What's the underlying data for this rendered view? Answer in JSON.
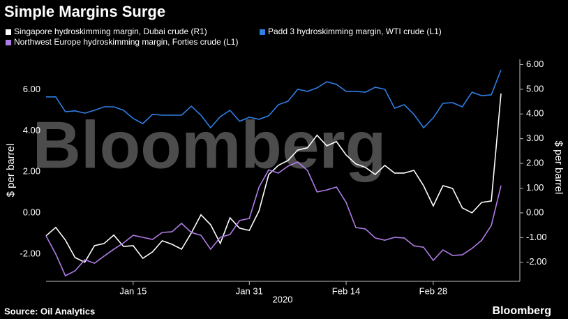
{
  "chart_data": {
    "type": "line",
    "title": "Simple Margins Surge",
    "watermark": "Bloomberg",
    "xlabel": "2020",
    "ylabel": "$ per barrel",
    "y2label": "$ per barrel",
    "source": "Source: Oil Analytics",
    "brand": "Bloomberg",
    "categories": [
      null,
      null,
      null,
      null,
      null,
      null,
      null,
      null,
      null,
      "Jan 15",
      null,
      null,
      null,
      null,
      null,
      null,
      null,
      null,
      null,
      null,
      null,
      "Jan 31",
      null,
      null,
      null,
      null,
      null,
      null,
      null,
      null,
      null,
      "Feb 14",
      null,
      null,
      null,
      null,
      null,
      null,
      null,
      null,
      "Feb 28",
      null,
      null,
      null,
      null,
      null,
      null,
      null
    ],
    "series": [
      {
        "name": "Singapore hydroskimming margin, Dubai crude (R1)",
        "color": "#ffffff",
        "axis": "y2",
        "values": [
          -0.93,
          -0.59,
          -1.1,
          -1.81,
          -2.0,
          -1.33,
          -1.24,
          -0.9,
          -1.36,
          -1.33,
          -1.84,
          -1.58,
          -1.13,
          -1.27,
          -1.47,
          -0.82,
          -0.08,
          -0.48,
          -1.24,
          -0.2,
          -0.62,
          -0.71,
          0.08,
          1.55,
          1.92,
          2.12,
          2.54,
          2.63,
          3.14,
          2.71,
          2.88,
          2.34,
          1.98,
          1.84,
          1.55,
          1.92,
          1.61,
          1.61,
          1.72,
          1.1,
          0.28,
          1.1,
          0.99,
          0.2,
          0.0,
          0.42,
          0.48,
          4.83
        ]
      },
      {
        "name": "Padd 3 hydroskimming margin, WTI crude (L1)",
        "color": "#2f7fe6",
        "values": [
          5.65,
          5.65,
          4.93,
          4.97,
          4.86,
          5.0,
          5.17,
          5.17,
          5.0,
          4.6,
          4.35,
          4.8,
          4.76,
          4.76,
          4.76,
          5.2,
          4.76,
          4.15,
          4.69,
          5.0,
          4.46,
          4.66,
          4.56,
          4.73,
          5.27,
          5.44,
          6.02,
          5.92,
          6.09,
          6.39,
          6.26,
          5.92,
          5.92,
          5.88,
          6.12,
          6.02,
          5.1,
          5.27,
          4.8,
          4.15,
          4.63,
          5.34,
          5.37,
          5.17,
          5.88,
          5.71,
          5.75,
          6.97
        ]
      },
      {
        "name": "Northwest Europe hydroskimming margin, Forties crude (L1)",
        "color": "#b07ce8",
        "values": [
          -1.12,
          -2.0,
          -3.06,
          -2.82,
          -2.28,
          -2.45,
          -2.1,
          -1.77,
          -1.46,
          -1.09,
          -1.19,
          -1.29,
          -0.95,
          -0.92,
          -0.51,
          -0.95,
          -1.09,
          -1.77,
          -1.19,
          -1.05,
          -0.37,
          -0.27,
          1.26,
          2.1,
          1.94,
          2.28,
          2.48,
          2.07,
          1.02,
          1.12,
          1.26,
          0.51,
          -0.71,
          -0.78,
          -1.22,
          -1.33,
          -1.19,
          -1.22,
          -1.6,
          -1.67,
          -2.31,
          -1.8,
          -2.07,
          -2.04,
          -1.73,
          -1.33,
          -0.61,
          1.33
        ]
      }
    ],
    "ylim": [
      -3.33,
      7.48
    ],
    "yticks": [
      {
        "value": -2,
        "label": "-2.00"
      },
      {
        "value": 0,
        "label": "0.00"
      },
      {
        "value": 2,
        "label": "2.00"
      },
      {
        "value": 4,
        "label": "4.00"
      },
      {
        "value": 6,
        "label": "6.00"
      }
    ],
    "y2lim": [
      -2.77,
      6.21
    ],
    "y2ticks": [
      {
        "value": -2,
        "label": "-2.00"
      },
      {
        "value": -1,
        "label": "-1.00"
      },
      {
        "value": 0,
        "label": "0.00"
      },
      {
        "value": 1,
        "label": "1.00"
      },
      {
        "value": 2,
        "label": "2.00"
      },
      {
        "value": 3,
        "label": "3.00"
      },
      {
        "value": 4,
        "label": "4.00"
      },
      {
        "value": 5,
        "label": "5.00"
      },
      {
        "value": 6,
        "label": "6.00"
      }
    ]
  }
}
